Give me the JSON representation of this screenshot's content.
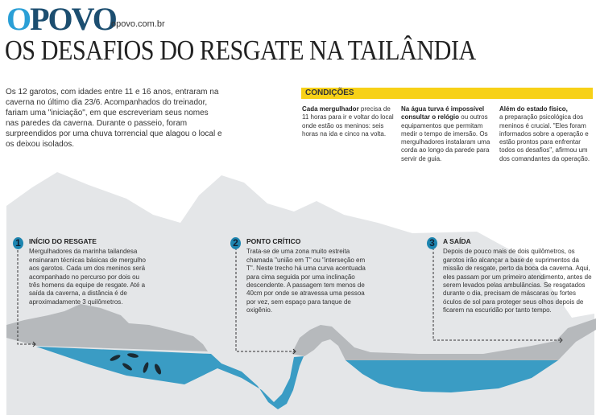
{
  "header": {
    "logo_first": "O",
    "logo_rest": "POVO",
    "site": "opovo.com.br",
    "title": "OS DESAFIOS DO RESGATE NA TAILÂNDIA"
  },
  "intro": "Os 12 garotos, com idades entre 11 e 16 anos, entraram na caverna no último dia 23/6. Acompanhados do treinador, fariam uma \"iniciação\", em que escreveriam seus nomes nas paredes da caverna. Durante o passeio, foram surpreendidos por uma chuva torrencial que alagou o local e os deixou isolados.",
  "conditions": {
    "label": "CONDIÇÕES",
    "columns": [
      {
        "bold": "Cada mergulhador",
        "text": " precisa de 11 horas para ir e voltar do local onde estão os meninos: seis horas na ida e cinco na volta."
      },
      {
        "bold": "Na água turva é impossível consultar o relógio",
        "text": " ou outros equipamentos que permitam medir o tempo de imersão. Os mergulhadores instalaram uma corda ao longo da parede para servir de guia."
      },
      {
        "bold": "Além do estado físico,",
        "text": " a preparação psicológica dos meninos é crucial. \"Eles foram informados sobre a operação e estão prontos para enfrentar todos os desafios\", afirmou um dos comandantes da operação."
      }
    ]
  },
  "steps": [
    {
      "number": "1",
      "title": "INÍCIO DO RESGATE",
      "text": "Mergulhadores da marinha tailandesa ensinaram técnicas básicas de mergulho aos garotos. Cada um dos meninos será acompanhado no percurso por dois ou três homens da equipe de resgate. Até a saída da caverna, a distância é de aproximadamente 3 quilômetros."
    },
    {
      "number": "2",
      "title": "PONTO CRÍTICO",
      "text": "Trata-se de uma zona muito estreita chamada \"união em T\" ou \"interseção em T\". Neste trecho há uma curva acentuada para cima seguida por uma inclinação descendente. A passagem tem menos de 40cm por onde se atravessa uma pessoa por vez, sem espaço para tanque de oxigênio."
    },
    {
      "number": "3",
      "title": "A SAÍDA",
      "text": "Depois de pouco mais de dois quilômetros, os garotos irão alcançar a base de suprimentos da missão de resgate, perto da boca da caverna. Aqui, eles passam por um primeiro atendimento, antes de serem levados pelas ambulâncias. Se resgatados durante o dia, precisam de máscaras ou fortes óculos de sol para proteger seus olhos depois de ficarem na escuridão por tanto tempo."
    }
  ],
  "colors": {
    "logo_light": "#2a9fd6",
    "logo_dark": "#1c4e70",
    "highlight": "#f7d117",
    "mountain": "#e4e6e8",
    "rock": "#b6b9bc",
    "water": "#3a9cc4",
    "diver": "#1a2a33"
  }
}
